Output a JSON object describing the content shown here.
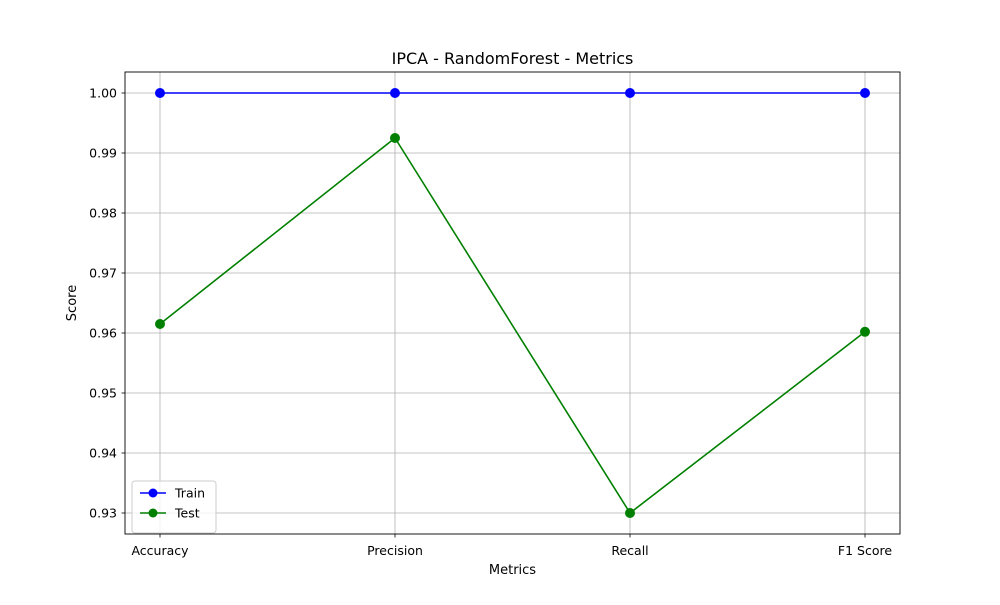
{
  "chart_data": {
    "type": "line",
    "title": "IPCA - RandomForest - Metrics",
    "xlabel": "Metrics",
    "ylabel": "Score",
    "categories": [
      "Accuracy",
      "Precision",
      "Recall",
      "F1 Score"
    ],
    "ylim": [
      0.9265,
      1.0035
    ],
    "yticks": [
      0.93,
      0.94,
      0.95,
      0.96,
      0.97,
      0.98,
      0.99,
      1.0
    ],
    "ytick_labels": [
      "0.93",
      "0.94",
      "0.95",
      "0.96",
      "0.97",
      "0.98",
      "0.99",
      "1.00"
    ],
    "grid": true,
    "legend_position": "lower-left",
    "series": [
      {
        "name": "Train",
        "color": "#0000ff",
        "marker": "circle",
        "values": [
          1.0,
          1.0,
          1.0,
          1.0
        ]
      },
      {
        "name": "Test",
        "color": "#008000",
        "marker": "circle",
        "values": [
          0.9615,
          0.9925,
          0.93,
          0.9602
        ]
      }
    ]
  }
}
